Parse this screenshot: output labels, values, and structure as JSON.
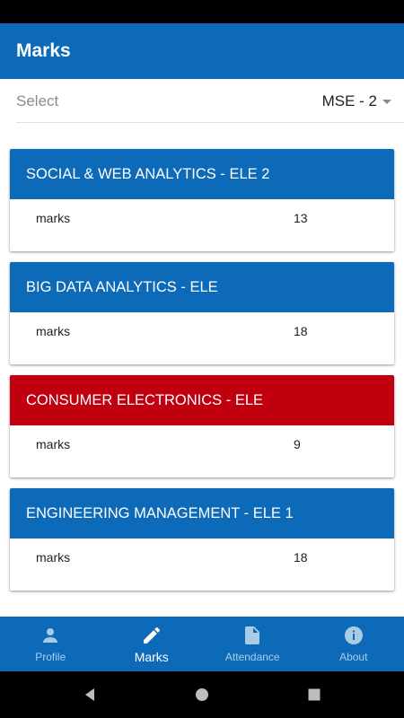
{
  "app_bar": {
    "title": "Marks"
  },
  "select": {
    "label": "Select",
    "value": "MSE - 2"
  },
  "cards": [
    {
      "subject": "SOCIAL & WEB ANALYTICS - ELE 2",
      "label": "marks",
      "value": "13",
      "header_color": "#0d6ab8"
    },
    {
      "subject": "BIG DATA ANALYTICS - ELE",
      "label": "marks",
      "value": "18",
      "header_color": "#0d6ab8"
    },
    {
      "subject": "CONSUMER ELECTRONICS - ELE",
      "label": "marks",
      "value": "9",
      "header_color": "#c0000f"
    },
    {
      "subject": "ENGINEERING MANAGEMENT - ELE 1",
      "label": "marks",
      "value": "18",
      "header_color": "#0d6ab8"
    }
  ],
  "bottom_nav": {
    "items": [
      {
        "label": "Profile",
        "icon": "person-icon",
        "active": false
      },
      {
        "label": "Marks",
        "icon": "pencil-icon",
        "active": true
      },
      {
        "label": "Attendance",
        "icon": "document-icon",
        "active": false
      },
      {
        "label": "About",
        "icon": "info-icon",
        "active": false
      }
    ]
  },
  "colors": {
    "primary": "#0d6ab8",
    "alert": "#c0000f"
  },
  "system_nav": {
    "icons": [
      "back-icon",
      "home-icon",
      "recents-icon"
    ]
  }
}
